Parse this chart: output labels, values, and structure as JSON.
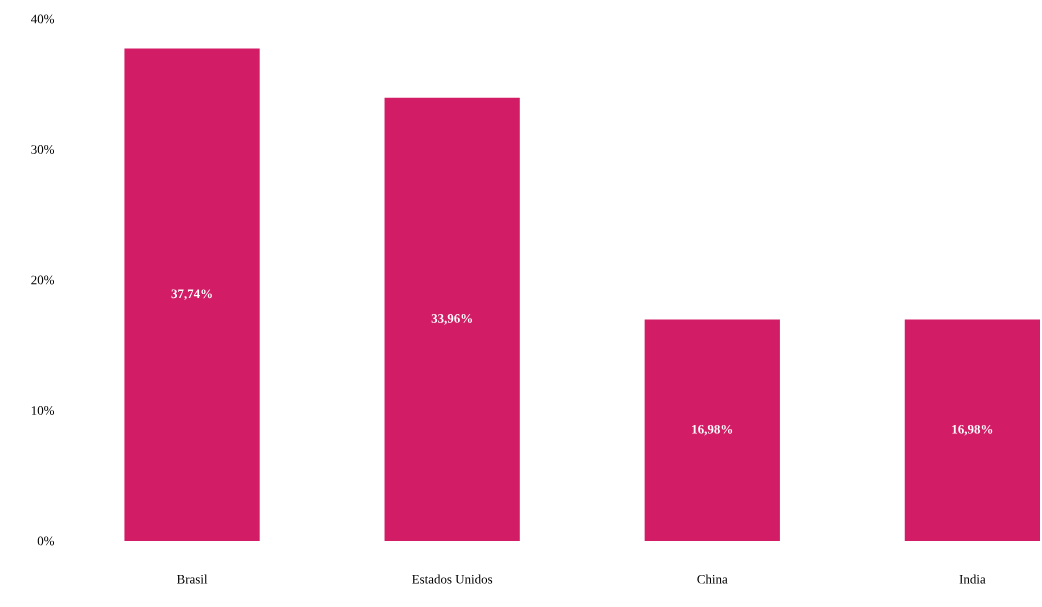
{
  "chart_data": {
    "type": "bar",
    "categories": [
      "Brasil",
      "Estados Unidos",
      "China",
      "India"
    ],
    "values": [
      37.74,
      33.96,
      16.98,
      16.98
    ],
    "value_labels": [
      "37,74%",
      "33,96%",
      "16,98%",
      "16,98%"
    ],
    "color": "#d31c66",
    "ylim": [
      0,
      40
    ],
    "yticks": [
      {
        "value": 0,
        "label": "0%"
      },
      {
        "value": 10,
        "label": "10%"
      },
      {
        "value": 20,
        "label": "20%"
      },
      {
        "value": 30,
        "label": "30%"
      },
      {
        "value": 40,
        "label": "40%"
      }
    ],
    "grid": false
  }
}
